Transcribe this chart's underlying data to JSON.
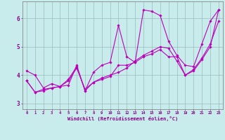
{
  "title": "",
  "xlabel": "Windchill (Refroidissement éolien,°C)",
  "ylabel": "",
  "background_color": "#c8ecec",
  "line_color": "#bb00bb",
  "grid_color": "#99bbbb",
  "axis_label_color": "#880088",
  "tick_label_color": "#880088",
  "spine_color": "#888888",
  "xlim": [
    -0.5,
    23.5
  ],
  "ylim": [
    2.8,
    6.6
  ],
  "yticks": [
    3,
    4,
    5,
    6
  ],
  "xticks": [
    0,
    1,
    2,
    3,
    4,
    5,
    6,
    7,
    8,
    9,
    10,
    11,
    12,
    13,
    14,
    15,
    16,
    17,
    18,
    19,
    20,
    21,
    22,
    23
  ],
  "series": [
    [
      4.15,
      4.0,
      3.55,
      3.7,
      3.6,
      3.65,
      4.35,
      3.45,
      4.1,
      4.35,
      4.45,
      5.75,
      4.65,
      4.45,
      6.3,
      6.25,
      6.1,
      5.2,
      4.7,
      4.35,
      4.3,
      5.1,
      5.9,
      6.3
    ],
    [
      3.8,
      3.4,
      3.45,
      3.55,
      3.6,
      3.85,
      4.3,
      3.45,
      3.75,
      3.85,
      3.95,
      4.35,
      4.35,
      4.45,
      4.65,
      4.75,
      4.9,
      4.65,
      4.65,
      4.0,
      4.15,
      4.55,
      5.0,
      6.3
    ],
    [
      3.8,
      3.4,
      3.5,
      3.55,
      3.6,
      3.8,
      4.25,
      3.5,
      3.75,
      3.9,
      4.0,
      4.1,
      4.25,
      4.5,
      4.7,
      4.85,
      5.0,
      4.95,
      4.5,
      4.0,
      4.2,
      4.6,
      5.1,
      5.9
    ]
  ],
  "figsize": [
    3.2,
    2.0
  ],
  "dpi": 100
}
